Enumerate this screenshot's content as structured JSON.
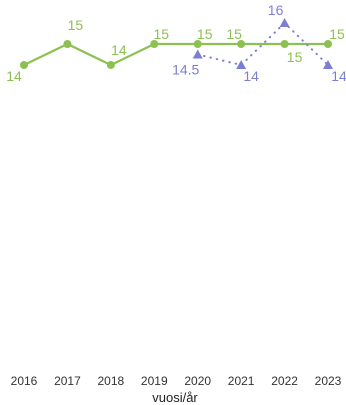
{
  "chart_data": {
    "type": "line",
    "title": "",
    "xlabel": "vuosi/år",
    "ylabel": "",
    "categories": [
      "2016",
      "2017",
      "2018",
      "2019",
      "2020",
      "2021",
      "2022",
      "2023"
    ],
    "grid": false,
    "legend": "none",
    "series": [
      {
        "color": "#8cc152",
        "line_style": "solid",
        "marker": "circle",
        "values": [
          14,
          15,
          14,
          15,
          15,
          15,
          15,
          15
        ],
        "labels": [
          "14",
          "15",
          "14",
          "15",
          "15",
          "15",
          "15",
          "15"
        ]
      },
      {
        "color": "#7b7fd4",
        "line_style": "dotted",
        "marker": "triangle",
        "values": [
          null,
          null,
          null,
          null,
          14.5,
          14,
          16,
          14
        ],
        "labels": [
          "",
          "",
          "",
          "",
          "14.5",
          "14",
          "16",
          "14"
        ]
      }
    ]
  }
}
